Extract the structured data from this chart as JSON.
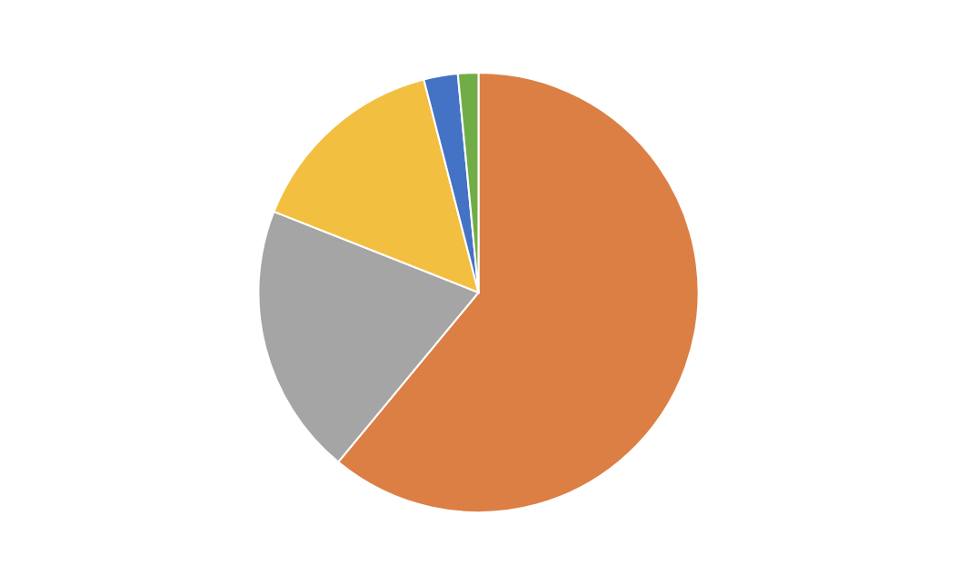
{
  "chart_data": {
    "type": "pie",
    "categories": [
      null,
      null,
      null,
      null,
      null
    ],
    "values": [
      61,
      20,
      15,
      2.5,
      1.5
    ],
    "colors": [
      "#dc7f45",
      "#a5a5a5",
      "#f2bf40",
      "#4472c4",
      "#70ad47"
    ]
  }
}
